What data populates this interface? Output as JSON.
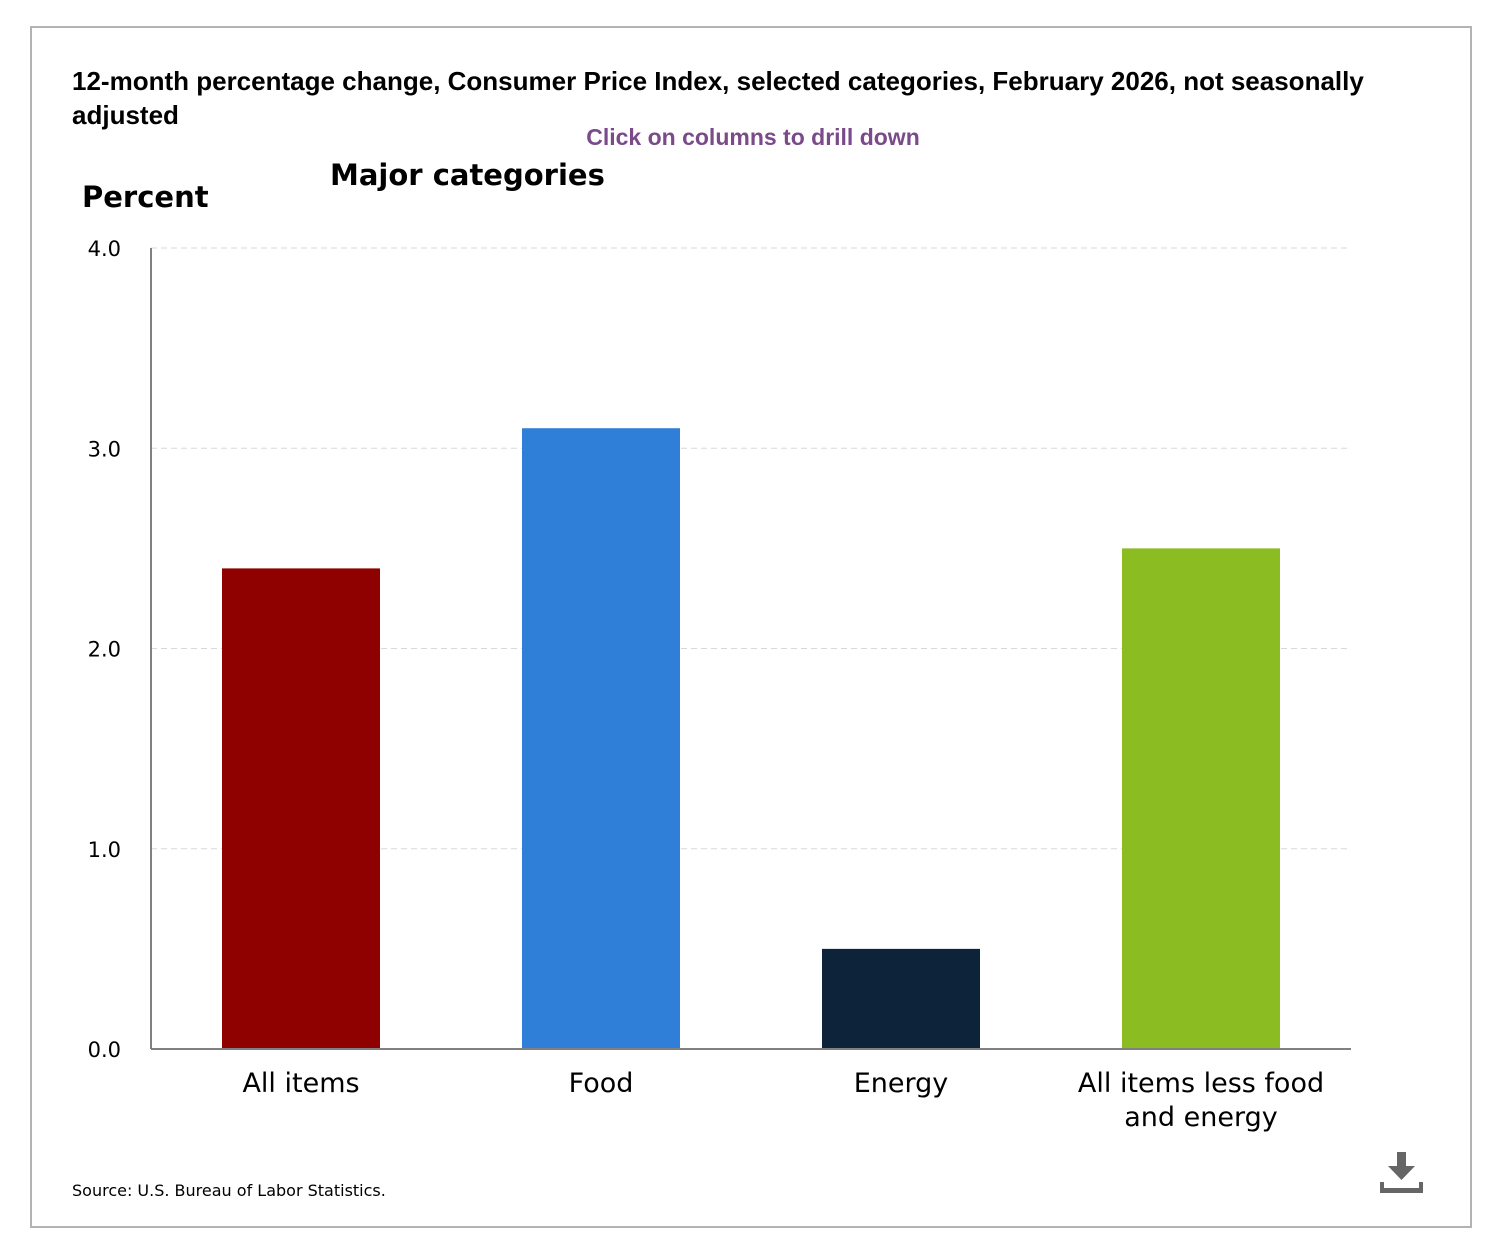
{
  "chart_data": {
    "type": "bar",
    "title": "12-month percentage change, Consumer Price Index, selected categories, February 2026, not seasonally adjusted",
    "drill_note": "Click on columns to drill down",
    "subtitle": "Major categories",
    "ylabel": "Percent",
    "xlabel": "",
    "categories": [
      "All items",
      "Food",
      "Energy",
      "All items less food and energy"
    ],
    "category_lines": [
      [
        "All items"
      ],
      [
        "Food"
      ],
      [
        "Energy"
      ],
      [
        "All items less food",
        "and energy"
      ]
    ],
    "values": [
      2.4,
      3.1,
      0.5,
      2.5
    ],
    "colors": [
      "#8f0000",
      "#2f7ed8",
      "#0d233a",
      "#8bbc21"
    ],
    "ylim": [
      0,
      4
    ],
    "yticks": [
      0,
      1,
      2,
      3,
      4
    ],
    "ytick_labels": [
      "0.0",
      "1.0",
      "2.0",
      "3.0",
      "4.0"
    ],
    "grid": true
  },
  "source": "Source: U.S. Bureau of Labor Statistics.",
  "icons": {
    "download": "download-icon"
  },
  "colors": {
    "drill_note": "#7a4a8a",
    "axis": "#808080",
    "grid": "#d8d8d8",
    "icon": "#666666"
  }
}
